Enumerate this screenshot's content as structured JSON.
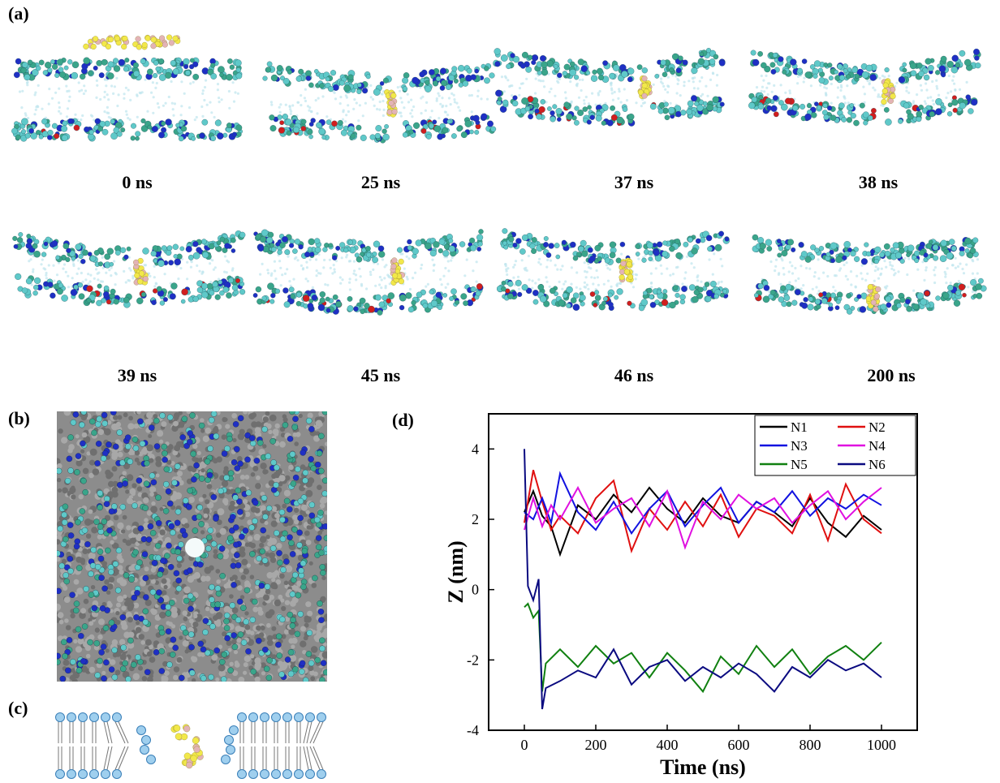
{
  "panel_labels": {
    "a": "(a)",
    "b": "(b)",
    "c": "(c)",
    "d": "(d)"
  },
  "snapshots": [
    {
      "time": "0 ns"
    },
    {
      "time": "25 ns"
    },
    {
      "time": "37 ns"
    },
    {
      "time": "38 ns"
    },
    {
      "time": "39 ns"
    },
    {
      "time": "45 ns"
    },
    {
      "time": "46 ns"
    },
    {
      "time": "200 ns"
    }
  ],
  "colors": {
    "bead_cyan": "#5fc9c9",
    "bead_teal": "#3aa58a",
    "bead_blue": "#1f2fc4",
    "bead_red": "#d11e1e",
    "bead_yellow": "#f2e84a",
    "bead_pink": "#e3b3b6",
    "bead_gray": "#9a9a9a",
    "lipid_head": "#9fcfee",
    "lipid_head_stroke": "#3a7fb8"
  },
  "chart_data": {
    "type": "line",
    "xlabel": "Time (ns)",
    "ylabel": "Z (nm)",
    "xlim": [
      -100,
      1100
    ],
    "ylim": [
      -4,
      5
    ],
    "xticks": [
      0,
      200,
      400,
      600,
      800,
      1000
    ],
    "yticks": [
      -4,
      -2,
      0,
      2,
      4
    ],
    "legend": "top-right",
    "series": [
      {
        "name": "N1",
        "color": "#000000",
        "x": [
          0,
          25,
          50,
          75,
          100,
          150,
          200,
          250,
          300,
          350,
          400,
          450,
          500,
          550,
          600,
          650,
          700,
          750,
          800,
          850,
          900,
          950,
          1000
        ],
        "y": [
          2.2,
          2.8,
          2.1,
          1.8,
          1.0,
          2.4,
          2.0,
          2.7,
          2.2,
          2.9,
          2.3,
          1.9,
          2.6,
          2.1,
          1.9,
          2.5,
          2.2,
          1.8,
          2.6,
          1.9,
          1.5,
          2.1,
          1.7
        ]
      },
      {
        "name": "N2",
        "color": "#e01010",
        "x": [
          0,
          25,
          50,
          75,
          100,
          150,
          200,
          250,
          300,
          350,
          400,
          450,
          500,
          550,
          600,
          650,
          700,
          750,
          800,
          850,
          900,
          950,
          1000
        ],
        "y": [
          1.9,
          3.4,
          2.5,
          1.7,
          2.1,
          1.6,
          2.6,
          3.1,
          1.1,
          2.3,
          1.7,
          2.5,
          1.8,
          2.7,
          1.5,
          2.3,
          2.1,
          1.6,
          2.7,
          1.4,
          3.0,
          2.0,
          1.6
        ]
      },
      {
        "name": "N3",
        "color": "#1212e0",
        "x": [
          0,
          25,
          50,
          75,
          100,
          150,
          200,
          250,
          300,
          350,
          400,
          450,
          500,
          550,
          600,
          650,
          700,
          750,
          800,
          850,
          900,
          950,
          1000
        ],
        "y": [
          2.2,
          2.0,
          2.6,
          1.9,
          3.3,
          2.2,
          1.7,
          2.5,
          1.6,
          2.3,
          2.8,
          1.8,
          2.4,
          2.9,
          1.9,
          2.5,
          2.2,
          2.8,
          2.1,
          2.6,
          2.3,
          2.7,
          2.4
        ]
      },
      {
        "name": "N4",
        "color": "#e010e0",
        "x": [
          0,
          25,
          50,
          75,
          100,
          150,
          200,
          250,
          300,
          350,
          400,
          450,
          500,
          550,
          600,
          650,
          700,
          750,
          800,
          850,
          900,
          950,
          1000
        ],
        "y": [
          1.7,
          2.6,
          1.8,
          2.4,
          2.0,
          2.9,
          1.9,
          2.3,
          2.6,
          1.8,
          2.8,
          1.2,
          2.5,
          2.0,
          2.7,
          2.3,
          2.6,
          1.9,
          2.4,
          2.8,
          2.0,
          2.5,
          2.9
        ]
      },
      {
        "name": "N5",
        "color": "#108010",
        "x": [
          0,
          10,
          25,
          40,
          50,
          60,
          100,
          150,
          200,
          250,
          300,
          350,
          400,
          450,
          500,
          550,
          600,
          650,
          700,
          750,
          800,
          850,
          900,
          950,
          1000
        ],
        "y": [
          -0.5,
          -0.4,
          -0.8,
          -0.6,
          -2.9,
          -2.1,
          -1.7,
          -2.2,
          -1.6,
          -2.1,
          -1.8,
          -2.5,
          -1.8,
          -2.3,
          -2.9,
          -1.9,
          -2.4,
          -1.6,
          -2.2,
          -1.7,
          -2.4,
          -1.9,
          -1.6,
          -2.0,
          -1.5
        ]
      },
      {
        "name": "N6",
        "color": "#0a0a80",
        "x": [
          0,
          10,
          25,
          40,
          50,
          60,
          100,
          150,
          200,
          250,
          300,
          350,
          400,
          450,
          500,
          550,
          600,
          650,
          700,
          750,
          800,
          850,
          900,
          950,
          1000
        ],
        "y": [
          4.0,
          0.1,
          -0.3,
          0.3,
          -3.4,
          -2.8,
          -2.6,
          -2.3,
          -2.5,
          -1.7,
          -2.7,
          -2.2,
          -2.0,
          -2.6,
          -2.2,
          -2.5,
          -2.1,
          -2.4,
          -2.9,
          -2.2,
          -2.5,
          -2.0,
          -2.3,
          -2.1,
          -2.5
        ]
      }
    ]
  }
}
